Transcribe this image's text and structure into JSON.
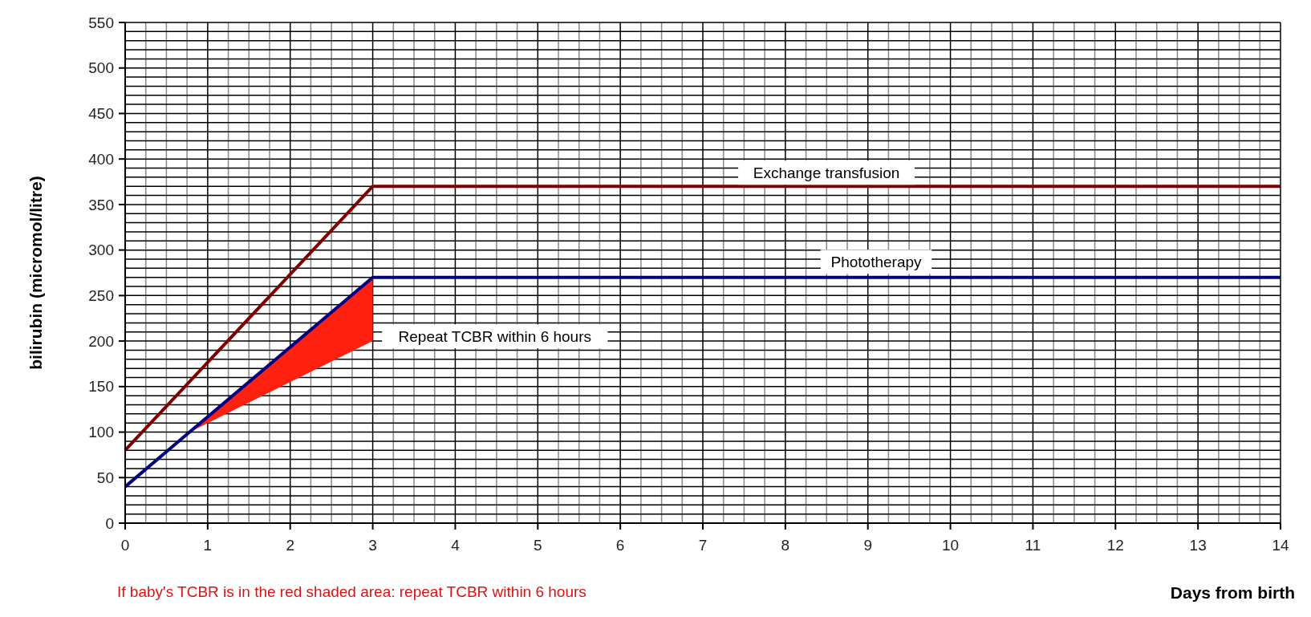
{
  "chart_data": {
    "type": "line",
    "xlabel": "Days from birth",
    "ylabel": "bilirubin  (micromol/litre)",
    "xlim": [
      0,
      14
    ],
    "ylim": [
      0,
      550
    ],
    "xticks": [
      0,
      {
        "value": 0.25,
        "label": null
      },
      {
        "value": 0.5,
        "label": null
      },
      {
        "value": 0.75,
        "label": null
      },
      1,
      {
        "value": 1.25,
        "label": null
      },
      {
        "value": 1.5,
        "label": null
      },
      {
        "value": 1.75,
        "label": null
      },
      2,
      {
        "value": 2.25,
        "label": null
      },
      {
        "value": 2.5,
        "label": null
      },
      {
        "value": 2.75,
        "label": null
      },
      3,
      {
        "value": 3.25,
        "label": null
      },
      {
        "value": 3.5,
        "label": null
      },
      {
        "value": 3.75,
        "label": null
      },
      4,
      {
        "value": 4.25,
        "label": null
      },
      {
        "value": 4.5,
        "label": null
      },
      {
        "value": 4.75,
        "label": null
      },
      5,
      {
        "value": 5.25,
        "label": null
      },
      {
        "value": 5.5,
        "label": null
      },
      {
        "value": 5.75,
        "label": null
      },
      6,
      {
        "value": 6.25,
        "label": null
      },
      {
        "value": 6.5,
        "label": null
      },
      {
        "value": 6.75,
        "label": null
      },
      7,
      {
        "value": 7.25,
        "label": null
      },
      {
        "value": 7.5,
        "label": null
      },
      {
        "value": 7.75,
        "label": null
      },
      8,
      {
        "value": 8.25,
        "label": null
      },
      {
        "value": 8.5,
        "label": null
      },
      {
        "value": 8.75,
        "label": null
      },
      9,
      {
        "value": 9.25,
        "label": null
      },
      {
        "value": 9.5,
        "label": null
      },
      {
        "value": 9.75,
        "label": null
      },
      10,
      {
        "value": 10.25,
        "label": null
      },
      {
        "value": 10.5,
        "label": null
      },
      {
        "value": 10.75,
        "label": null
      },
      11,
      {
        "value": 11.25,
        "label": null
      },
      {
        "value": 11.5,
        "label": null
      },
      {
        "value": 11.75,
        "label": null
      },
      12,
      {
        "value": 12.25,
        "label": null
      },
      {
        "value": 12.5,
        "label": null
      },
      {
        "value": 12.75,
        "label": null
      },
      13,
      {
        "value": 13.25,
        "label": null
      },
      {
        "value": 13.5,
        "label": null
      },
      {
        "value": 13.75,
        "label": null
      },
      14
    ],
    "yticks": [
      0,
      {
        "value": 10,
        "label": null
      },
      {
        "value": 20,
        "label": null
      },
      {
        "value": 30,
        "label": null
      },
      {
        "value": 40,
        "label": null
      },
      50,
      {
        "value": 60,
        "label": null
      },
      {
        "value": 70,
        "label": null
      },
      {
        "value": 80,
        "label": null
      },
      {
        "value": 90,
        "label": null
      },
      100,
      {
        "value": 110,
        "label": null
      },
      {
        "value": 120,
        "label": null
      },
      {
        "value": 130,
        "label": null
      },
      {
        "value": 140,
        "label": null
      },
      150,
      {
        "value": 160,
        "label": null
      },
      {
        "value": 170,
        "label": null
      },
      {
        "value": 180,
        "label": null
      },
      {
        "value": 190,
        "label": null
      },
      200,
      {
        "value": 210,
        "label": null
      },
      {
        "value": 220,
        "label": null
      },
      {
        "value": 230,
        "label": null
      },
      {
        "value": 240,
        "label": null
      },
      250,
      {
        "value": 260,
        "label": null
      },
      {
        "value": 270,
        "label": null
      },
      {
        "value": 280,
        "label": null
      },
      {
        "value": 290,
        "label": null
      },
      300,
      {
        "value": 310,
        "label": null
      },
      {
        "value": 320,
        "label": null
      },
      {
        "value": 330,
        "label": null
      },
      {
        "value": 340,
        "label": null
      },
      350,
      {
        "value": 360,
        "label": null
      },
      {
        "value": 370,
        "label": null
      },
      {
        "value": 380,
        "label": null
      },
      {
        "value": 390,
        "label": null
      },
      400,
      {
        "value": 410,
        "label": null
      },
      {
        "value": 420,
        "label": null
      },
      {
        "value": 430,
        "label": null
      },
      {
        "value": 440,
        "label": null
      },
      450,
      {
        "value": 460,
        "label": null
      },
      {
        "value": 470,
        "label": null
      },
      {
        "value": 480,
        "label": null
      },
      {
        "value": 490,
        "label": null
      },
      500,
      {
        "value": 510,
        "label": null
      },
      {
        "value": 520,
        "label": null
      },
      {
        "value": 530,
        "label": null
      },
      {
        "value": 540,
        "label": null
      },
      550
    ],
    "grid": true,
    "marker": "none",
    "line_style": "solid",
    "series": [
      {
        "color": "#800000",
        "x": [
          0,
          3,
          14
        ],
        "values": [
          80,
          370,
          370
        ]
      },
      {
        "color": "#000080",
        "x": [
          0,
          0.78,
          3,
          14
        ],
        "values": [
          40,
          100,
          270,
          270
        ],
        "lower": [
          null,
          100,
          200,
          null
        ],
        "upper": [
          null,
          100,
          270,
          null
        ]
      }
    ],
    "annotations": [
      "Exchange transfusion",
      "Phototherapy",
      "Repeat TCBR within 6 hours",
      "If baby's TCBR is in the red shaded area: repeat TCBR within 6 hours"
    ]
  }
}
